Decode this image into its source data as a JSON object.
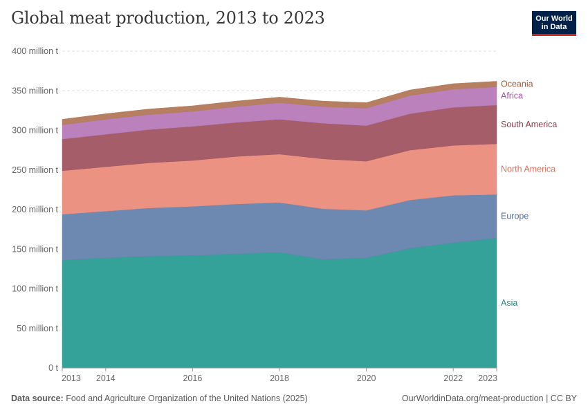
{
  "title": "Global meat production, 2013 to 2023",
  "logo": {
    "line1": "Our World",
    "line2": "in Data"
  },
  "footer": {
    "source_label": "Data source:",
    "source_text": "Food and Agriculture Organization of the United Nations (2025)",
    "url_license": "OurWorldinData.org/meat-production | CC BY"
  },
  "chart_data": {
    "type": "area",
    "stacked": true,
    "x": [
      2013,
      2014,
      2015,
      2016,
      2017,
      2018,
      2019,
      2020,
      2021,
      2022,
      2023
    ],
    "x_tick_labels": [
      "2013",
      "2014",
      "2016",
      "2018",
      "2020",
      "2022",
      "2023"
    ],
    "y_ticks": [
      0,
      50,
      100,
      150,
      200,
      250,
      300,
      350,
      400
    ],
    "y_tick_labels": [
      "0 t",
      "50 million t",
      "100 million t",
      "150 million t",
      "200 million t",
      "250 million t",
      "300 million t",
      "350 million t",
      "400 million t"
    ],
    "ylim": [
      0,
      400
    ],
    "unit": "million t",
    "grid": true,
    "legend": "right-end labels",
    "series": [
      {
        "name": "Asia",
        "color": "#2a9d93",
        "values": [
          136,
          139,
          141,
          142,
          144,
          146,
          137,
          139,
          151,
          158,
          164
        ]
      },
      {
        "name": "Europe",
        "color": "#6683ad",
        "values": [
          58,
          59,
          61,
          62,
          63,
          63,
          64,
          60,
          61,
          60,
          55
        ]
      },
      {
        "name": "North America",
        "color": "#ea8c7b",
        "values": [
          55,
          56,
          57,
          58,
          60,
          61,
          63,
          62,
          63,
          63,
          64
        ]
      },
      {
        "name": "South America",
        "color": "#a05561",
        "values": [
          40,
          41,
          42,
          43,
          43,
          44,
          45,
          45,
          46,
          48,
          49
        ]
      },
      {
        "name": "Africa",
        "color": "#b77ab8",
        "values": [
          18,
          19,
          19,
          19,
          20,
          21,
          21,
          22,
          23,
          23,
          23
        ]
      },
      {
        "name": "Oceania",
        "color": "#b3785a",
        "values": [
          7,
          7,
          7,
          7,
          7,
          7,
          7,
          7,
          7,
          7,
          7
        ]
      }
    ]
  }
}
